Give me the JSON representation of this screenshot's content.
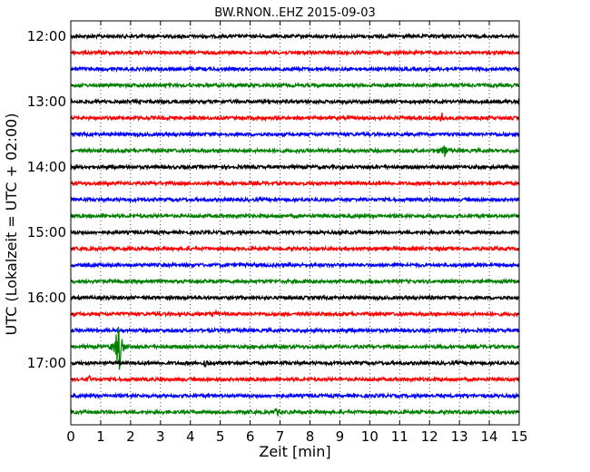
{
  "chart_data": {
    "type": "line",
    "title": "BW.RNON..EHZ 2015-09-03",
    "xlabel": "Zeit  [min]",
    "ylabel": "UTC (Lokalzeit = UTC + 02:00)",
    "xlim": [
      0,
      15
    ],
    "x_ticks": [
      "0",
      "1",
      "2",
      "3",
      "4",
      "5",
      "6",
      "7",
      "8",
      "9",
      "10",
      "11",
      "12",
      "13",
      "14",
      "15"
    ],
    "y_tick_labels": [
      "12:00",
      "13:00",
      "14:00",
      "15:00",
      "16:00",
      "17:00"
    ],
    "grid": "vertical dotted",
    "line_colors": [
      "#000000",
      "#ff0000",
      "#0000ff",
      "#008000"
    ],
    "rows": [
      {
        "start": "12:00",
        "color": "#000000"
      },
      {
        "start": "12:15",
        "color": "#ff0000"
      },
      {
        "start": "12:30",
        "color": "#0000ff"
      },
      {
        "start": "12:45",
        "color": "#008000"
      },
      {
        "start": "13:00",
        "color": "#000000"
      },
      {
        "start": "13:15",
        "color": "#ff0000",
        "event": {
          "minute": 12.4,
          "amplitude": 0.3
        }
      },
      {
        "start": "13:30",
        "color": "#0000ff"
      },
      {
        "start": "13:45",
        "color": "#008000",
        "event": {
          "minute": 12.5,
          "amplitude": 0.45
        }
      },
      {
        "start": "14:00",
        "color": "#000000"
      },
      {
        "start": "14:15",
        "color": "#ff0000"
      },
      {
        "start": "14:30",
        "color": "#0000ff"
      },
      {
        "start": "14:45",
        "color": "#008000"
      },
      {
        "start": "15:00",
        "color": "#000000"
      },
      {
        "start": "15:15",
        "color": "#ff0000"
      },
      {
        "start": "15:30",
        "color": "#0000ff"
      },
      {
        "start": "15:45",
        "color": "#008000"
      },
      {
        "start": "16:00",
        "color": "#000000"
      },
      {
        "start": "16:15",
        "color": "#ff0000",
        "event": {
          "minute": 4.8,
          "amplitude": 0.3
        }
      },
      {
        "start": "16:30",
        "color": "#0000ff"
      },
      {
        "start": "16:45",
        "color": "#008000",
        "event": {
          "minute": 1.6,
          "amplitude": 1.9
        }
      },
      {
        "start": "17:00",
        "color": "#000000",
        "event": {
          "minute": 4.5,
          "amplitude": 0.3
        }
      },
      {
        "start": "17:15",
        "color": "#ff0000",
        "event": {
          "minute": 0.6,
          "amplitude": 0.35
        }
      },
      {
        "start": "17:30",
        "color": "#0000ff"
      },
      {
        "start": "17:45",
        "color": "#008000",
        "event": {
          "minute": 6.9,
          "amplitude": 0.25
        }
      }
    ]
  }
}
